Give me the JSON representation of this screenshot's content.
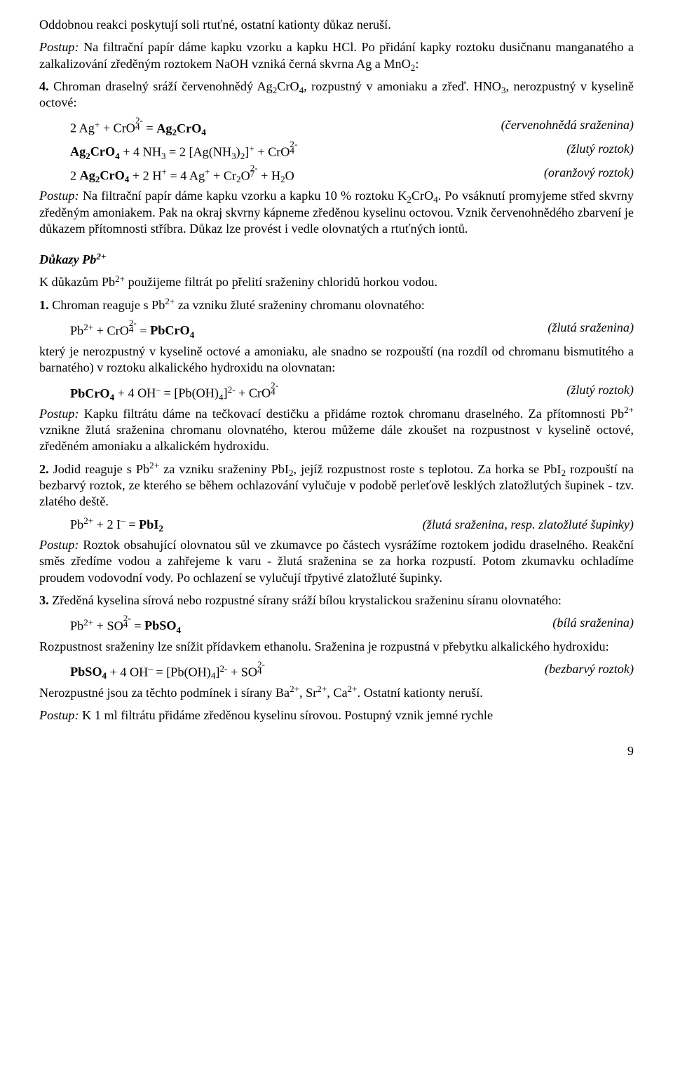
{
  "p1": "Oddobnou reakci poskytují soli rtuťné, ostatní kationty důkaz neruší.",
  "p2_postup": "Postup:",
  "p2_rest": " Na filtrační papír dáme kapku vzorku a kapku HCl. Po přidání kapky roztoku dusičnanu manganatého a zalkalizování zředěným roztokem NaOH vzniká černá skvrna Ag a MnO",
  "p3_pre": " Chroman draselný sráží červenohnědý Ag",
  "p3_mid": ", rozpustný v amoniaku a zřeď. HNO",
  "p3_end": ", nerozpustný v kyselině octové:",
  "eq1_left_a": "2 Ag",
  "eq1_left_b": " + CrO",
  "eq1_left_c": " = ",
  "eq1_left_d": "Ag",
  "eq1_right": "(červenohnědá sraženina)",
  "eq2_left_a": "Ag",
  "eq2_left_b": " + 4 NH",
  "eq2_left_c": " = 2 [Ag(NH",
  "eq2_left_d": ")",
  "eq2_left_e": "]",
  "eq2_left_f": " + CrO",
  "eq2_right": "(žlutý roztok)",
  "eq3_left_a": "2 ",
  "eq3_left_b": "Ag",
  "eq3_left_c": " + 2 H",
  "eq3_left_d": " = 4 Ag",
  "eq3_left_e": " + Cr",
  "eq3_left_f": "O",
  "eq3_left_g": " + H",
  "eq3_left_h": "O",
  "eq3_right": "(oranžový roztok)",
  "p4_postup": "Postup:",
  "p4_rest": " Na filtrační papír dáme kapku vzorku a kapku 10 % roztoku K",
  "p4_rest2": ". Po vsáknutí promyjeme střed skvrny zředěným amoniakem. Pak na okraj skvrny kápneme zředěnou kyselinu octovou. Vznik červenohnědého zbarvení je důkazem přítomnosti stříbra. Důkaz lze provést i vedle olovnatých a rtuťných iontů.",
  "h_dukazy": "Důkazy Pb",
  "p5_a": "K důkazům Pb",
  "p5_b": " použijeme filtrát po přelití sraženiny chloridů horkou vodou.",
  "p6_a": "1.",
  "p6_b": " Chroman reaguje s Pb",
  "p6_c": " za vzniku žluté sraženiny chromanu olovnatého:",
  "eq4_a": "Pb",
  "eq4_b": " + CrO",
  "eq4_c": " = ",
  "eq4_d": "PbCrO",
  "eq4_right": "(žlutá sraženina)",
  "p7": "který je nerozpustný v kyselině octové a amoniaku, ale snadno se rozpouští (na rozdíl od chromanu bismutitého a barnatého) v roztoku alkalického hydroxidu na olovnatan:",
  "eq5_a": "PbCrO",
  "eq5_b": " + 4 OH",
  "eq5_c": " = [Pb(OH)",
  "eq5_d": "]",
  "eq5_e": " + CrO",
  "eq5_right": "(žlutý roztok)",
  "p8_postup": "Postup:",
  "p8_rest": " Kapku filtrátu dáme na tečkovací destičku a přidáme roztok chromanu draselného. Za přítomnosti Pb",
  "p8_rest2": " vznikne žlutá sraženina chromanu olovnatého, kterou můžeme dále zkoušet na rozpustnost v kyselině octové, zředěném amoniaku a alkalickém hydroxidu.",
  "p9_a": "2.",
  "p9_b": " Jodid reaguje s Pb",
  "p9_c": " za vzniku sraženiny PbI",
  "p9_d": ", jejíž rozpustnost roste s teplotou. Za horka se PbI",
  "p9_e": " rozpouští na bezbarvý roztok, ze kterého se během ochlazování vylučuje v podobě perleťově lesklých zlatožlutých šupinek - tzv. zlatého deště.",
  "eq6_a": "Pb",
  "eq6_b": " + 2 I",
  "eq6_c": " = ",
  "eq6_d": "PbI",
  "eq6_right": "(žlutá sraženina, resp. zlatožluté šupinky)",
  "p10_postup": "Postup:",
  "p10_rest": " Roztok obsahující olovnatou sůl ve zkumavce po částech vysrážíme roztokem jodidu draselného. Reakční směs zředíme vodou a zahřejeme k varu - žlutá sraženina se za horka rozpustí. Potom zkumavku ochladíme proudem vodovodní vody. Po ochlazení se vylučují třpytivé zlatožluté šupinky.",
  "p11_a": "3.",
  "p11_b": " Zředěná kyselina sírová nebo rozpustné sírany sráží bílou krystalickou sraženinu síranu olovnatého:",
  "eq7_a": "Pb",
  "eq7_b": " + SO",
  "eq7_c": " = ",
  "eq7_d": "PbSO",
  "eq7_right": "(bílá sraženina)",
  "p12": "Rozpustnost sraženiny lze snížit přídavkem ethanolu. Sraženina je rozpustná v přebytku alkalického hydroxidu:",
  "eq8_a": "PbSO",
  "eq8_b": " + 4 OH",
  "eq8_c": " = [Pb(OH)",
  "eq8_d": "]",
  "eq8_e": " + SO",
  "eq8_right": "(bezbarvý roztok)",
  "p13_a": "Nerozpustné jsou za těchto podmínek i sírany Ba",
  "p13_b": ", Sr",
  "p13_c": ", Ca",
  "p13_d": ". Ostatní kationty neruší.",
  "p14_postup": "Postup:",
  "p14_rest": " K 1 ml filtrátu přidáme zředěnou kyselinu sírovou. Postupný vznik jemné rychle",
  "page_num": "9",
  "num4_pre": "4.",
  "sup_plus": "+",
  "sup_2plus": "2+",
  "sup_minus": "–",
  "sup_2minus": "2-",
  "sub_2": "2",
  "sub_3": "3",
  "sub_4": "4",
  "sub_7": "7",
  "CrO": "CrO"
}
